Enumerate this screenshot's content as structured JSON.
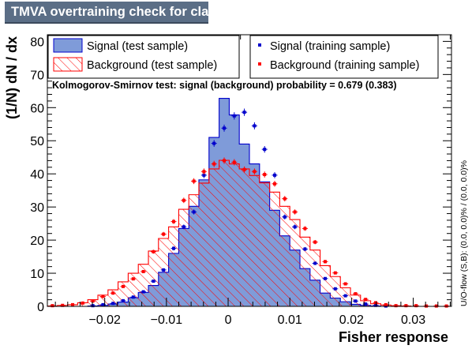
{
  "title": "TMVA overtraining check for classifier: Fisher",
  "colors": {
    "signal_fill": "#7f9bd9",
    "signal_line": "#0000cc",
    "signal_marker": "#0000cc",
    "background_line": "#ff0000",
    "background_marker": "#ff0000",
    "title_bg": "#5b6e86"
  },
  "legend_left": {
    "entries": [
      {
        "label": "Signal (test sample)",
        "style": "filled-box"
      },
      {
        "label": "Background (test sample)",
        "style": "hatched-box"
      }
    ]
  },
  "legend_right": {
    "entries": [
      {
        "label": "Signal (training sample)",
        "style": "marker"
      },
      {
        "label": "Background (training sample)",
        "style": "marker"
      }
    ]
  },
  "ks_text": "Kolmogorov-Smirnov test: signal (background) probability = 0.679 (0.383)",
  "overflow_text": "U/O-flow (S,B): (0.0, 0.0)% / (0.0, 0.0)%",
  "chart_data": {
    "type": "histogram",
    "xlabel": "Fisher response",
    "ylabel": "(1/N) dN / dx",
    "xlim": [
      -0.0293,
      0.0362
    ],
    "ylim": [
      0,
      82
    ],
    "x_ticks": [
      -0.02,
      -0.01,
      0,
      0.01,
      0.02,
      0.03
    ],
    "x_tick_labels": [
      "−0.02",
      "−0.01",
      "0",
      "0.01",
      "0.02",
      "0.03"
    ],
    "y_ticks": [
      0,
      10,
      20,
      30,
      40,
      50,
      60,
      70,
      80
    ],
    "y_tick_labels": [
      "0",
      "10",
      "20",
      "30",
      "40",
      "50",
      "60",
      "70",
      "80"
    ],
    "bin_edges": [
      -0.0293,
      -0.02766,
      -0.02602,
      -0.02439,
      -0.02275,
      -0.02111,
      -0.01947,
      -0.01784,
      -0.0162,
      -0.01456,
      -0.01292,
      -0.01129,
      -0.00965,
      -0.00801,
      -0.00637,
      -0.00474,
      -0.0031,
      -0.00146,
      0.00018,
      0.00181,
      0.00345,
      0.00509,
      0.00673,
      0.00836,
      0.01,
      0.01164,
      0.01328,
      0.01491,
      0.01655,
      0.01819,
      0.01983,
      0.02146,
      0.0231,
      0.02474,
      0.02638,
      0.02801,
      0.02965,
      0.03129,
      0.03293,
      0.03456,
      0.0362
    ],
    "series": [
      {
        "name": "Signal (test sample)",
        "style": "filled",
        "values": [
          0,
          0,
          0,
          0,
          0.1,
          0.3,
          0.7,
          1.3,
          2.6,
          4.2,
          6.3,
          10.3,
          16.0,
          23.5,
          30.2,
          38.2,
          51.0,
          62.8,
          57.8,
          49.0,
          43.0,
          37.6,
          29.0,
          21.3,
          17.0,
          11.4,
          7.9,
          4.0,
          2.5,
          1.4,
          0.6,
          0.3,
          0.1,
          0,
          0,
          0,
          0,
          0,
          0,
          0
        ]
      },
      {
        "name": "Background (test sample)",
        "style": "hatched",
        "values": [
          0.1,
          0.3,
          0.5,
          1.1,
          2.0,
          3.4,
          5.0,
          7.4,
          10.0,
          12.7,
          16.7,
          20.5,
          24.0,
          29.3,
          33.7,
          37.2,
          41.5,
          44.1,
          43.0,
          41.5,
          39.5,
          37.3,
          34.5,
          30.2,
          26.2,
          20.9,
          17.0,
          12.3,
          9.0,
          5.6,
          3.4,
          1.7,
          0.8,
          0.4,
          0.2,
          0.1,
          0,
          0,
          0,
          0
        ]
      },
      {
        "name": "Signal (training sample)",
        "style": "markers",
        "values": [
          0,
          0,
          0,
          0,
          0.2,
          0.5,
          0.9,
          1.7,
          2.8,
          4.4,
          7.6,
          11.0,
          17.5,
          24.0,
          28.5,
          39.6,
          49.2,
          53.8,
          57.5,
          58.6,
          54.5,
          47.4,
          39.6,
          27.0,
          24.0,
          17.3,
          13.0,
          8.4,
          5.3,
          3.2,
          1.6,
          0.7,
          0.3,
          0.1,
          0,
          0,
          0,
          0,
          0,
          0
        ]
      },
      {
        "name": "Background (training sample)",
        "style": "markers",
        "values": [
          0.2,
          0.3,
          0.5,
          1.0,
          1.6,
          3.0,
          4.0,
          6.0,
          8.3,
          10.5,
          16.5,
          21.8,
          25.6,
          32.0,
          37.8,
          40.7,
          43.0,
          44.0,
          43.5,
          41.3,
          40.7,
          39.8,
          37.0,
          32.5,
          28.5,
          23.5,
          19.4,
          13.5,
          10.1,
          6.8,
          3.8,
          2.1,
          1.1,
          0.5,
          0.2,
          0.2,
          0.2,
          0.1,
          0.1,
          0.1
        ]
      }
    ]
  }
}
